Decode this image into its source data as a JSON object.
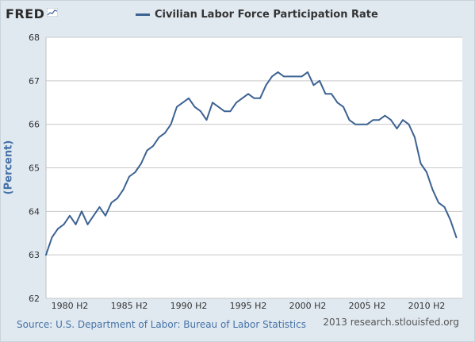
{
  "header": {
    "logo_text": "FRED",
    "logo_icon": "chart-line-icon"
  },
  "source_text": "Source: U.S. Department of Labor: Bureau of Labor Statistics",
  "credit_text": "2013 research.stlouisfed.org",
  "colors": {
    "series": "#3c6292",
    "background": "#e1e9f0",
    "plot_bg": "#ffffff",
    "grid": "#c7c7c7",
    "axis_label": "#4572a7"
  },
  "chart_data": {
    "type": "line",
    "title": "",
    "xlabel": "",
    "ylabel": "(Percent)",
    "ylim": [
      62,
      68
    ],
    "yticks": [
      "62",
      "63",
      "64",
      "65",
      "66",
      "67",
      "68"
    ],
    "xlim": [
      1978.5,
      2013.5
    ],
    "xtick_labels": [
      {
        "x": 1980.5,
        "label": "1980 H2"
      },
      {
        "x": 1985.5,
        "label": "1985 H2"
      },
      {
        "x": 1990.5,
        "label": "1990 H2"
      },
      {
        "x": 1995.5,
        "label": "1995 H2"
      },
      {
        "x": 2000.5,
        "label": "2000 H2"
      },
      {
        "x": 2005.5,
        "label": "2005 H2"
      },
      {
        "x": 2010.5,
        "label": "2010 H2"
      }
    ],
    "grid": "horizontal",
    "legend_position": "top-center",
    "series": [
      {
        "name": "Civilian Labor Force Participation Rate",
        "x": [
          1978.5,
          1979.0,
          1979.5,
          1980.0,
          1980.5,
          1981.0,
          1981.5,
          1982.0,
          1982.5,
          1983.0,
          1983.5,
          1984.0,
          1984.5,
          1985.0,
          1985.5,
          1986.0,
          1986.5,
          1987.0,
          1987.5,
          1988.0,
          1988.5,
          1989.0,
          1989.5,
          1990.0,
          1990.5,
          1991.0,
          1991.5,
          1992.0,
          1992.5,
          1993.0,
          1993.5,
          1994.0,
          1994.5,
          1995.0,
          1995.5,
          1996.0,
          1996.5,
          1997.0,
          1997.5,
          1998.0,
          1998.5,
          1999.0,
          1999.5,
          2000.0,
          2000.5,
          2001.0,
          2001.5,
          2002.0,
          2002.5,
          2003.0,
          2003.5,
          2004.0,
          2004.5,
          2005.0,
          2005.5,
          2006.0,
          2006.5,
          2007.0,
          2007.5,
          2008.0,
          2008.5,
          2009.0,
          2009.5,
          2010.0,
          2010.5,
          2011.0,
          2011.5,
          2012.0,
          2012.5,
          2013.0
        ],
        "values": [
          63.0,
          63.4,
          63.6,
          63.7,
          63.9,
          63.7,
          64.0,
          63.7,
          63.9,
          64.1,
          63.9,
          64.2,
          64.3,
          64.5,
          64.8,
          64.9,
          65.1,
          65.4,
          65.5,
          65.7,
          65.8,
          66.0,
          66.4,
          66.5,
          66.6,
          66.4,
          66.3,
          66.1,
          66.5,
          66.4,
          66.3,
          66.3,
          66.5,
          66.6,
          66.7,
          66.6,
          66.6,
          66.9,
          67.1,
          67.2,
          67.1,
          67.1,
          67.1,
          67.1,
          67.2,
          66.9,
          67.0,
          66.7,
          66.7,
          66.5,
          66.4,
          66.1,
          66.0,
          66.0,
          66.0,
          66.1,
          66.1,
          66.2,
          66.1,
          65.9,
          66.1,
          66.0,
          65.7,
          65.1,
          64.9,
          64.5,
          64.2,
          64.1,
          63.8,
          63.4
        ]
      }
    ]
  }
}
